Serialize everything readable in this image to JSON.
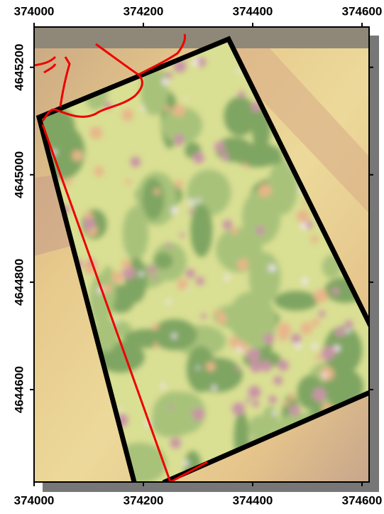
{
  "map": {
    "xlim": [
      374000,
      374613
    ],
    "xticks": [
      374000,
      374200,
      374400,
      374600
    ],
    "ylim": [
      4644428,
      4645275
    ],
    "yticks": [
      4644600,
      4644800,
      4645000,
      4645200
    ]
  }
}
